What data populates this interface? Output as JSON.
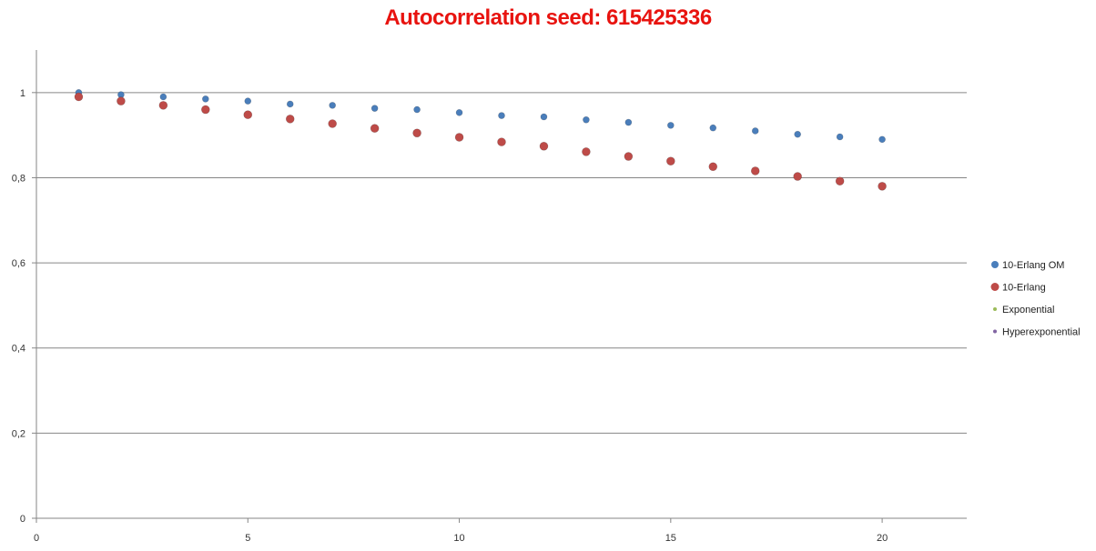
{
  "chart_data": {
    "type": "scatter",
    "title": "Autocorrelation seed: 615425336",
    "title_color": "#e8130f",
    "xlabel": "",
    "ylabel": "",
    "xlim": [
      0,
      22
    ],
    "ylim": [
      0,
      1.1
    ],
    "x_ticks": [
      0,
      5,
      10,
      15,
      20
    ],
    "x_tick_labels": [
      "0",
      "5",
      "10",
      "15",
      "20"
    ],
    "y_ticks": [
      0,
      0.2,
      0.4,
      0.6,
      0.8,
      1
    ],
    "y_tick_labels": [
      "0",
      "0,2",
      "0,4",
      "0,6",
      "0,8",
      "1"
    ],
    "grid": "horizontal",
    "legend_position": "right",
    "series": [
      {
        "name": "10-Erlang OM",
        "color": "#4a7ebb",
        "marker": "circle",
        "x": [
          1,
          2,
          3,
          4,
          5,
          6,
          7,
          8,
          9,
          10,
          11,
          12,
          13,
          14,
          15,
          16,
          17,
          18,
          19,
          20
        ],
        "y": [
          1.0,
          0.995,
          0.99,
          0.985,
          0.98,
          0.973,
          0.97,
          0.963,
          0.96,
          0.953,
          0.946,
          0.943,
          0.936,
          0.93,
          0.923,
          0.917,
          0.91,
          0.902,
          0.896,
          0.89
        ]
      },
      {
        "name": "10-Erlang",
        "color": "#be4b48",
        "marker": "circle",
        "x": [
          1,
          2,
          3,
          4,
          5,
          6,
          7,
          8,
          9,
          10,
          11,
          12,
          13,
          14,
          15,
          16,
          17,
          18,
          19,
          20
        ],
        "y": [
          0.99,
          0.98,
          0.97,
          0.96,
          0.948,
          0.938,
          0.927,
          0.916,
          0.905,
          0.895,
          0.884,
          0.874,
          0.861,
          0.85,
          0.839,
          0.826,
          0.816,
          0.803,
          0.792,
          0.78
        ]
      },
      {
        "name": "Exponential",
        "color": "#9bbb59",
        "marker": "circle",
        "x": [],
        "y": []
      },
      {
        "name": "Hyperexponential",
        "color": "#8064a2",
        "marker": "circle",
        "x": [],
        "y": []
      }
    ]
  }
}
